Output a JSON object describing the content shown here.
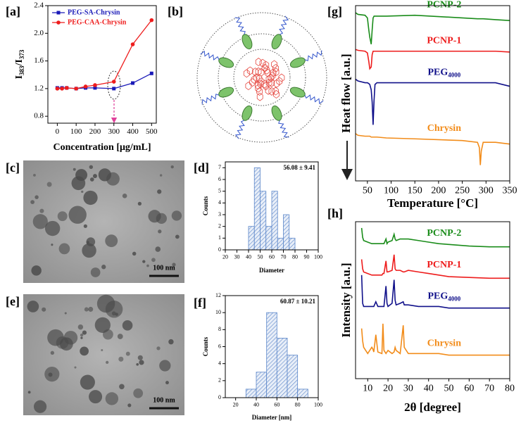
{
  "chart_data": [
    {
      "type": "line",
      "label": "[a]",
      "xlabel": "Concentration [μg/mL]",
      "ylabel": [
        "I",
        "383",
        "/I",
        "373"
      ],
      "x": [
        0,
        25,
        50,
        100,
        150,
        200,
        300,
        400,
        500
      ],
      "series": [
        {
          "name": "PEG-SA-Chrysin",
          "color": "#1a1ab8",
          "marker": "square",
          "values": [
            1.21,
            1.21,
            1.21,
            1.2,
            1.21,
            1.21,
            1.2,
            1.28,
            1.42
          ]
        },
        {
          "name": "PEG-CAA-Chrysin",
          "color": "#ee1c1c",
          "marker": "circle",
          "values": [
            1.2,
            1.2,
            1.21,
            1.2,
            1.23,
            1.25,
            1.3,
            1.84,
            2.19
          ]
        }
      ],
      "xlim": [
        -50,
        525
      ],
      "ylim": [
        0.7,
        2.4
      ],
      "xticks": [
        0,
        100,
        200,
        300,
        400,
        500
      ],
      "yticks": [
        0.8,
        1.2,
        1.6,
        {
          "value": 2,
          "label": "2.0"
        },
        2.4
      ],
      "legend": "upper left"
    },
    {
      "type": "histogram",
      "label": "[d]",
      "xlabel": "Diameter",
      "ylabel": "Counts",
      "annotation": "56.08 ± 9.41",
      "bins": [
        40,
        45,
        50,
        55,
        60,
        65,
        70,
        75,
        80
      ],
      "values": [
        2,
        7,
        5,
        2,
        5,
        1,
        3,
        1
      ],
      "color": "#5b86c9",
      "xlim": [
        20,
        100
      ],
      "ylim": [
        0,
        7.5
      ],
      "xticks": [
        20,
        30,
        40,
        50,
        60,
        70,
        80,
        90,
        100
      ],
      "yticks": [
        0,
        1,
        2,
        3,
        4,
        5,
        6,
        7
      ]
    },
    {
      "type": "histogram",
      "label": "[f]",
      "xlabel": "Diameter [nm]",
      "ylabel": "Counts",
      "annotation": "60.87 ± 10.21",
      "bins": [
        30,
        40,
        50,
        60,
        70,
        80,
        90
      ],
      "values": [
        1,
        3,
        10,
        7,
        5,
        1
      ],
      "color": "#5b86c9",
      "xlim": [
        10,
        100
      ],
      "ylim": [
        0,
        12
      ],
      "xticks": [
        20,
        40,
        60,
        80,
        100
      ],
      "yticks": [
        0,
        2,
        4,
        6,
        8,
        10,
        12
      ]
    },
    {
      "type": "line",
      "label": "[g]",
      "xlabel": "Temperature [°C]",
      "ylabel": "Heat flow [a.u.]",
      "x": [
        25,
        30,
        45,
        50,
        53,
        55,
        58,
        60,
        62,
        64,
        66,
        70,
        90,
        150,
        250,
        282,
        286,
        288,
        290,
        294,
        320,
        350
      ],
      "series": [
        {
          "name": "PCNP-2",
          "color": "#1a8c1a",
          "values": [
            9.6,
            9.5,
            9.45,
            9.3,
            8.6,
            8.2,
            7.8,
            8.6,
            9.3,
            9.4,
            9.4,
            9.4,
            9.4,
            9.45,
            9.3,
            9.25,
            9.25,
            9.25,
            9.25,
            9.25,
            9.2,
            9.15
          ]
        },
        {
          "name": "PCNP-1",
          "color": "#ee1c1c",
          "values": [
            7.5,
            7.45,
            7.4,
            7.3,
            6.8,
            6.4,
            6.5,
            7.2,
            7.4,
            7.4,
            7.4,
            7.4,
            7.4,
            7.4,
            7.4,
            7.4,
            7.4,
            7.4,
            7.4,
            7.4,
            7.4,
            7.35
          ]
        },
        {
          "name": "PEG",
          "name_sub": "4000",
          "color": "#10108a",
          "values": [
            5.8,
            5.7,
            5.6,
            5.6,
            5.55,
            5.5,
            5.2,
            4.5,
            3.2,
            4.6,
            5.5,
            5.6,
            5.6,
            5.6,
            5.6,
            5.6,
            5.6,
            5.6,
            5.6,
            5.6,
            5.6,
            5.4
          ]
        },
        {
          "name": "Chrysin",
          "color": "#f28c1a",
          "values": [
            2.7,
            2.6,
            2.55,
            2.55,
            2.55,
            2.55,
            2.5,
            2.5,
            2.5,
            2.5,
            2.5,
            2.5,
            2.45,
            2.4,
            2.3,
            2.2,
            1.9,
            0.9,
            1.7,
            2.2,
            2.2,
            2.1
          ]
        }
      ],
      "xlim": [
        25,
        350
      ],
      "ylim": [
        0,
        10
      ],
      "xticks": [
        50,
        100,
        150,
        200,
        250,
        300,
        350
      ],
      "legend": "inline"
    },
    {
      "type": "line",
      "label": "[h]",
      "xlabel": "2θ [degree]",
      "ylabel": "Intensity [a.u.]",
      "x": [
        7,
        7.5,
        8,
        10,
        12,
        12.5,
        13,
        14,
        15,
        17,
        17.5,
        18,
        19,
        19.5,
        20,
        22,
        23,
        23.5,
        24,
        26,
        27.5,
        28,
        30,
        35,
        40,
        45,
        50,
        60,
        70,
        80
      ],
      "series": [
        {
          "name": "PCNP-2",
          "color": "#1a8c1a",
          "values": [
            9.6,
            9.0,
            8.8,
            8.7,
            8.6,
            8.6,
            8.6,
            8.6,
            8.6,
            8.6,
            8.6,
            8.6,
            8.9,
            8.6,
            8.7,
            8.8,
            9.2,
            8.9,
            8.8,
            8.9,
            8.9,
            8.9,
            8.9,
            8.8,
            8.7,
            8.6,
            8.55,
            8.45,
            8.4,
            8.4
          ]
        },
        {
          "name": "PCNP-1",
          "color": "#ee1c1c",
          "values": [
            7.6,
            7.0,
            6.8,
            6.7,
            6.6,
            6.6,
            6.6,
            6.6,
            6.6,
            6.6,
            6.7,
            6.7,
            7.5,
            6.8,
            6.8,
            6.9,
            7.9,
            7.0,
            6.9,
            6.9,
            6.8,
            6.8,
            6.9,
            6.8,
            6.7,
            6.6,
            6.5,
            6.45,
            6.4,
            6.4
          ]
        },
        {
          "name": "PEG",
          "name_sub": "4000",
          "color": "#10108a",
          "values": [
            6.6,
            4.8,
            4.6,
            4.6,
            4.6,
            4.6,
            4.6,
            4.9,
            4.6,
            4.6,
            4.6,
            4.6,
            5.9,
            4.8,
            4.6,
            4.8,
            6.3,
            5.0,
            4.7,
            4.8,
            4.9,
            4.7,
            4.7,
            4.6,
            4.6,
            4.6,
            4.5,
            4.5,
            4.5,
            4.5
          ]
        },
        {
          "name": "Chrysin",
          "color": "#f28c1a",
          "values": [
            3.2,
            2.4,
            2.0,
            1.6,
            2.0,
            1.9,
            1.7,
            2.8,
            1.7,
            1.6,
            3.5,
            1.8,
            1.6,
            1.7,
            1.8,
            1.6,
            1.7,
            2.0,
            1.8,
            1.6,
            3.4,
            2.0,
            1.6,
            1.6,
            1.6,
            1.6,
            1.5,
            1.5,
            1.5,
            1.5
          ]
        }
      ],
      "xlim": [
        4,
        80
      ],
      "ylim": [
        0,
        10
      ],
      "xticks": [
        10,
        20,
        30,
        40,
        50,
        60,
        70,
        80
      ],
      "legend": "inline"
    }
  ],
  "schematic": {
    "label": "[b]"
  },
  "images": [
    {
      "label": "[c]",
      "scale_bar": "100 nm"
    },
    {
      "label": "[e]",
      "scale_bar": "100 nm"
    }
  ]
}
